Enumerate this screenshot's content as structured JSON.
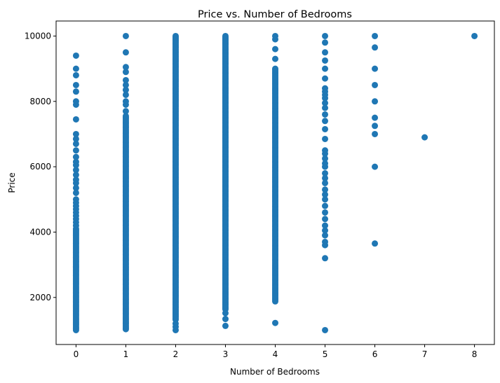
{
  "chart_data": {
    "type": "scatter",
    "title": "Price vs. Number of Bedrooms",
    "xlabel": "Number of Bedrooms",
    "ylabel": "Price",
    "x_ticks": [
      0,
      1,
      2,
      3,
      4,
      5,
      6,
      7,
      8
    ],
    "y_ticks": [
      2000,
      4000,
      6000,
      8000,
      10000
    ],
    "xlim": [
      -0.4,
      8.4
    ],
    "ylim": [
      560,
      10460
    ],
    "grid": false,
    "marker_color": "#1f77b4",
    "columns": [
      {
        "x": 0,
        "dense": [
          1000,
          4100
        ],
        "extra": [
          4200,
          4300,
          4400,
          4500,
          4600,
          4700,
          4800,
          4900,
          5000,
          5200,
          5350,
          5500,
          5600,
          5750,
          5900,
          6050,
          6150,
          6300,
          6500,
          6700,
          6850,
          7000,
          7450,
          7900,
          8000,
          8300,
          8500,
          8800,
          9000,
          9400
        ]
      },
      {
        "x": 1,
        "dense": [
          1030,
          7550
        ],
        "extra": [
          7700,
          7900,
          8000,
          8200,
          8350,
          8500,
          8650,
          8900,
          9050,
          9500,
          10000
        ]
      },
      {
        "x": 2,
        "dense": [
          1320,
          10000
        ],
        "extra": [
          1000,
          1100,
          1200
        ]
      },
      {
        "x": 3,
        "dense": [
          1640,
          10000
        ],
        "extra": [
          1130,
          1340,
          1520
        ]
      },
      {
        "x": 4,
        "dense": [
          1880,
          9000
        ],
        "extra": [
          1220,
          9300,
          9600,
          9900,
          10000
        ]
      },
      {
        "x": 5,
        "dense": [],
        "extra": [
          1000,
          3200,
          3600,
          3700,
          3900,
          4050,
          4200,
          4400,
          4600,
          4800,
          5000,
          5150,
          5300,
          5500,
          5650,
          5800,
          6000,
          6100,
          6250,
          6400,
          6500,
          6850,
          7150,
          7400,
          7600,
          7800,
          7950,
          8100,
          8200,
          8300,
          8400,
          8700,
          9000,
          9250,
          9500,
          9800,
          10000
        ]
      },
      {
        "x": 6,
        "dense": [],
        "extra": [
          3650,
          6000,
          7000,
          7250,
          7500,
          8000,
          8500,
          9000,
          9650,
          10000
        ]
      },
      {
        "x": 7,
        "dense": [],
        "extra": [
          6900
        ]
      },
      {
        "x": 8,
        "dense": [],
        "extra": [
          10000
        ]
      }
    ]
  }
}
